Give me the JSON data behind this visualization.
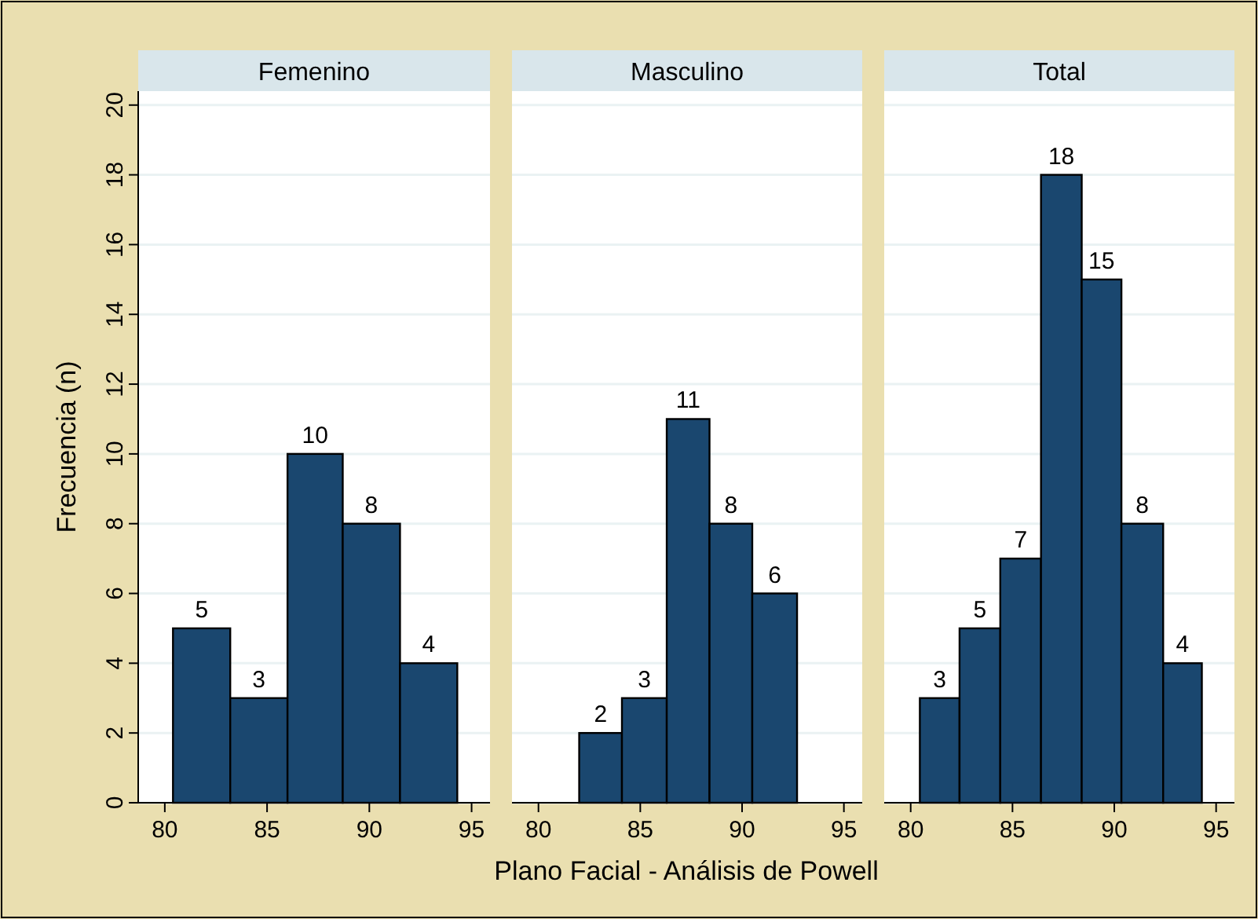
{
  "chart_data": [
    {
      "type": "histogram",
      "title": "Femenino",
      "ylabel": "Frecuencia (n)",
      "bins": [
        80.4,
        83.2,
        86.0,
        88.7,
        91.5,
        94.3
      ],
      "values": [
        5,
        3,
        10,
        8,
        4
      ],
      "color": "#1a476f",
      "xlim": [
        78.7,
        95.9
      ],
      "xticks": [
        80,
        85,
        90,
        95
      ],
      "ylim": [
        0,
        20.4
      ],
      "yticks": [
        0,
        2,
        4,
        6,
        8,
        10,
        12,
        14,
        16,
        18,
        20
      ],
      "grid": "y",
      "data_labels": true
    },
    {
      "type": "histogram",
      "title": "Masculino",
      "xlabel": "Plano Facial - Análisis de Powell",
      "bins": [
        82.0,
        84.1,
        86.3,
        88.4,
        90.5,
        92.7
      ],
      "values": [
        2,
        3,
        11,
        8,
        6
      ],
      "color": "#1a476f",
      "xlim": [
        78.7,
        95.9
      ],
      "xticks": [
        80,
        85,
        90,
        95
      ],
      "ylim": [
        0,
        20.4
      ],
      "yticks": [
        0,
        2,
        4,
        6,
        8,
        10,
        12,
        14,
        16,
        18,
        20
      ],
      "grid": "y",
      "data_labels": true,
      "tick_labels": "x"
    },
    {
      "type": "histogram",
      "title": "Total",
      "bins": [
        80.45,
        82.4,
        84.4,
        86.4,
        88.4,
        90.35,
        92.4,
        94.3
      ],
      "values": [
        3,
        5,
        7,
        18,
        15,
        8,
        4
      ],
      "color": "#1a476f",
      "xlim": [
        78.7,
        95.9
      ],
      "xticks": [
        80,
        85,
        90,
        95
      ],
      "ylim": [
        0,
        20.4
      ],
      "yticks": [
        0,
        2,
        4,
        6,
        8,
        10,
        12,
        14,
        16,
        18,
        20
      ],
      "grid": "y",
      "data_labels": true,
      "tick_labels": "x"
    }
  ]
}
